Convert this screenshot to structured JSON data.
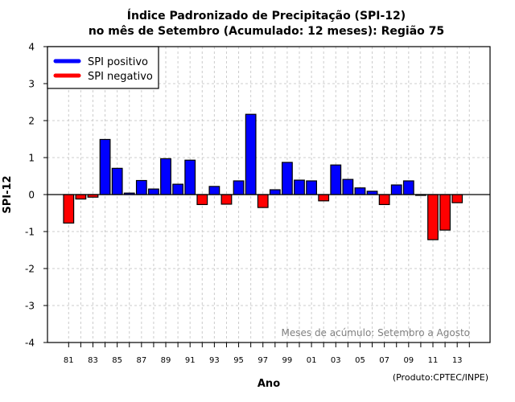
{
  "chart_data": {
    "type": "bar",
    "title": "Índice Padronizado de Precipitação (SPI-12)",
    "subtitle": "no mês de Setembro (Acumulado: 12 meses): Região 75",
    "xlabel": "Ano",
    "ylabel": "SPI-12",
    "ylim": [
      -4,
      4
    ],
    "yticks": [
      "4",
      "3",
      "2",
      "1",
      "0",
      "-1",
      "-2",
      "-3",
      "-4"
    ],
    "ytick_values": [
      4,
      3,
      2,
      1,
      0,
      -1,
      -2,
      -3,
      -4
    ],
    "xlim": [
      1979.5,
      2015.5
    ],
    "xtick_years": [
      1981,
      1982,
      1983,
      1984,
      1985,
      1986,
      1987,
      1988,
      1989,
      1990,
      1991,
      1992,
      1993,
      1994,
      1995,
      1996,
      1997,
      1998,
      1999,
      2000,
      2001,
      2002,
      2003,
      2004,
      2005,
      2006,
      2007,
      2008,
      2009,
      2010,
      2011,
      2012,
      2013,
      2014
    ],
    "xtick_labels": [
      "81",
      "83",
      "85",
      "87",
      "89",
      "91",
      "93",
      "95",
      "97",
      "99",
      "01",
      "03",
      "05",
      "07",
      "09",
      "11",
      "13"
    ],
    "xtick_label_years": [
      1981,
      1983,
      1985,
      1987,
      1989,
      1991,
      1993,
      1995,
      1997,
      1999,
      2001,
      2003,
      2005,
      2007,
      2009,
      2011,
      2013
    ],
    "grid": true,
    "legend_position": "top-left",
    "legend": [
      {
        "label": "SPI positivo",
        "color": "#0000ff"
      },
      {
        "label": "SPI negativo",
        "color": "#ff0000"
      }
    ],
    "colors": {
      "positive": "#0000ff",
      "negative": "#ff0000",
      "grid": "#cccccc"
    },
    "years": [
      1981,
      1982,
      1983,
      1984,
      1985,
      1986,
      1987,
      1988,
      1989,
      1990,
      1991,
      1992,
      1993,
      1994,
      1995,
      1996,
      1997,
      1998,
      1999,
      2000,
      2001,
      2002,
      2003,
      2004,
      2005,
      2006,
      2007,
      2008,
      2009,
      2010,
      2011,
      2012,
      2013
    ],
    "values": [
      -0.77,
      -0.12,
      -0.07,
      1.49,
      0.71,
      0.04,
      0.38,
      0.15,
      0.97,
      0.28,
      0.93,
      -0.27,
      0.22,
      -0.26,
      0.37,
      2.17,
      -0.35,
      0.13,
      0.87,
      0.39,
      0.37,
      -0.17,
      0.8,
      0.41,
      0.18,
      0.09,
      -0.27,
      0.26,
      0.37,
      -0.02,
      -1.22,
      -0.96,
      -0.22
    ],
    "annotation": "Meses de acúmulo: Setembro a Agosto",
    "credit": "(Produto:CPTEC/INPE)"
  }
}
